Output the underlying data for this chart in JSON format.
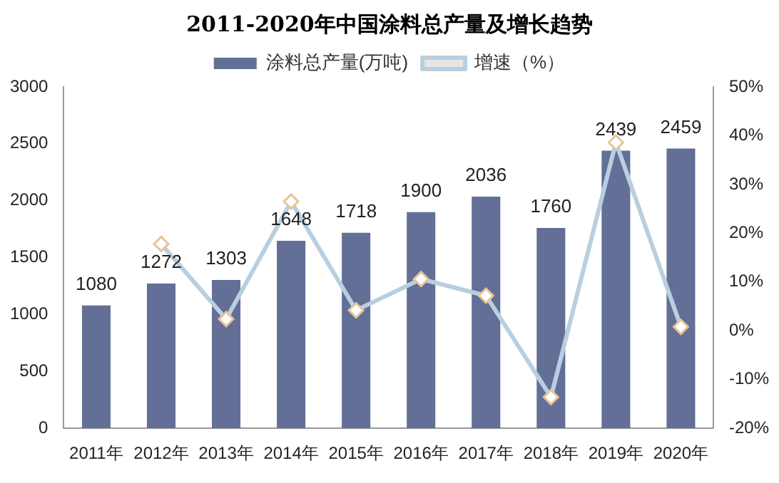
{
  "chart_data": {
    "type": "bar",
    "title": "2011-2020年中国涂料总产量及增长趋势",
    "categories": [
      "2011年",
      "2012年",
      "2013年",
      "2014年",
      "2015年",
      "2016年",
      "2017年",
      "2018年",
      "2019年",
      "2020年"
    ],
    "series": [
      {
        "name": "涂料总产量(万吨)",
        "color": "#636f96",
        "values": [
          1080,
          1272,
          1303,
          1648,
          1718,
          1900,
          2036,
          1760,
          2439,
          2459
        ],
        "data_labels": true
      },
      {
        "name": "增速（%）",
        "type": "line",
        "axis": "y2",
        "color": "#b9cfe0",
        "marker": "diamond",
        "values": [
          null,
          17.8,
          2.4,
          26.5,
          4.2,
          10.6,
          7.2,
          -13.6,
          38.6,
          0.8
        ]
      }
    ],
    "ylim": [
      0,
      3000
    ],
    "yticks": [
      0,
      500,
      1000,
      1500,
      2000,
      2500,
      3000
    ],
    "y2lim": [
      -20,
      50
    ],
    "y2ticks": [
      {
        "value": -20,
        "label": "-20%"
      },
      {
        "value": -10,
        "label": "-10%"
      },
      {
        "value": 0,
        "label": "0%"
      },
      {
        "value": 10,
        "label": "10%"
      },
      {
        "value": 20,
        "label": "20%"
      },
      {
        "value": 30,
        "label": "30%"
      },
      {
        "value": 40,
        "label": "40%"
      },
      {
        "value": 50,
        "label": "50%"
      }
    ],
    "legend": "top",
    "grid": false
  }
}
